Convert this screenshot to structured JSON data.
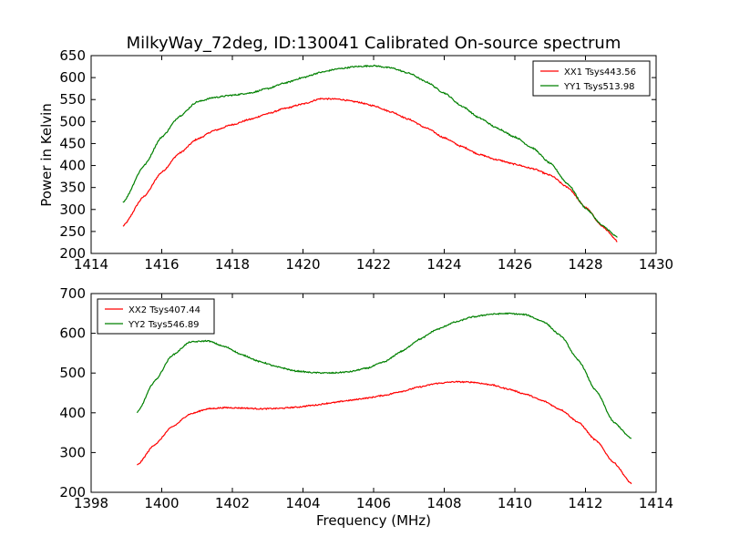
{
  "chart_data": [
    {
      "type": "line",
      "title": "MilkyWay_72deg, ID:130041 Calibrated On-source spectrum",
      "xlabel": "",
      "ylabel": "Power in Kelvin",
      "xlim": [
        1414,
        1430
      ],
      "ylim": [
        200,
        650
      ],
      "xticks": [
        1414,
        1416,
        1418,
        1420,
        1422,
        1424,
        1426,
        1428,
        1430
      ],
      "yticks": [
        200,
        250,
        300,
        350,
        400,
        450,
        500,
        550,
        600,
        650
      ],
      "grid": false,
      "legend": "top-right",
      "series": [
        {
          "name": "XX1 Tsys443.56",
          "color": "#ff0000",
          "x": [
            1414.9,
            1415.5,
            1416.0,
            1416.5,
            1417.0,
            1417.5,
            1418.0,
            1418.5,
            1419.0,
            1419.5,
            1420.0,
            1420.5,
            1421.0,
            1421.5,
            1422.0,
            1422.5,
            1423.0,
            1423.5,
            1424.0,
            1424.5,
            1425.0,
            1425.5,
            1426.0,
            1426.5,
            1427.0,
            1427.5,
            1428.0,
            1428.5,
            1428.9
          ],
          "y": [
            262,
            330,
            385,
            428,
            460,
            480,
            493,
            505,
            518,
            530,
            540,
            552,
            551,
            545,
            536,
            522,
            505,
            485,
            463,
            443,
            425,
            413,
            403,
            393,
            378,
            350,
            305,
            260,
            228
          ]
        },
        {
          "name": "YY1 Tsys513.98",
          "color": "#008000",
          "x": [
            1414.9,
            1415.5,
            1416.0,
            1416.5,
            1417.0,
            1417.5,
            1418.0,
            1418.5,
            1419.0,
            1419.5,
            1420.0,
            1420.5,
            1421.0,
            1421.5,
            1422.0,
            1422.5,
            1423.0,
            1423.5,
            1424.0,
            1424.5,
            1425.0,
            1425.5,
            1426.0,
            1426.5,
            1427.0,
            1427.5,
            1428.0,
            1428.5,
            1428.9
          ],
          "y": [
            316,
            400,
            465,
            512,
            545,
            555,
            560,
            565,
            575,
            588,
            600,
            612,
            620,
            625,
            627,
            622,
            610,
            590,
            565,
            535,
            508,
            485,
            465,
            440,
            405,
            358,
            303,
            262,
            237
          ]
        }
      ]
    },
    {
      "type": "line",
      "title": "",
      "xlabel": "Frequency (MHz)",
      "ylabel": "",
      "xlim": [
        1398,
        1414
      ],
      "ylim": [
        200,
        700
      ],
      "xticks": [
        1398,
        1400,
        1402,
        1404,
        1406,
        1408,
        1410,
        1412,
        1414
      ],
      "yticks": [
        200,
        300,
        400,
        500,
        600,
        700
      ],
      "grid": false,
      "legend": "top-left",
      "series": [
        {
          "name": "XX2 Tsys407.44",
          "color": "#ff0000",
          "x": [
            1399.3,
            1399.8,
            1400.3,
            1400.8,
            1401.3,
            1401.8,
            1402.3,
            1402.8,
            1403.3,
            1403.8,
            1404.3,
            1404.8,
            1405.3,
            1405.8,
            1406.3,
            1406.8,
            1407.3,
            1407.8,
            1408.3,
            1408.8,
            1409.3,
            1409.8,
            1410.3,
            1410.8,
            1411.3,
            1411.8,
            1412.3,
            1412.8,
            1413.3
          ],
          "y": [
            268,
            320,
            365,
            397,
            410,
            413,
            412,
            410,
            411,
            414,
            419,
            425,
            431,
            437,
            444,
            454,
            465,
            474,
            478,
            477,
            471,
            460,
            447,
            430,
            408,
            376,
            330,
            275,
            222
          ]
        },
        {
          "name": "YY2 Tsys546.89",
          "color": "#008000",
          "x": [
            1399.3,
            1399.8,
            1400.3,
            1400.8,
            1401.3,
            1401.8,
            1402.3,
            1402.8,
            1403.3,
            1403.8,
            1404.3,
            1404.8,
            1405.3,
            1405.8,
            1406.3,
            1406.8,
            1407.3,
            1407.8,
            1408.3,
            1408.8,
            1409.3,
            1409.8,
            1410.3,
            1410.8,
            1411.3,
            1411.8,
            1412.3,
            1412.8,
            1413.3
          ],
          "y": [
            400,
            480,
            545,
            578,
            581,
            566,
            545,
            528,
            515,
            505,
            501,
            500,
            503,
            512,
            528,
            555,
            585,
            610,
            628,
            641,
            648,
            650,
            647,
            630,
            594,
            532,
            455,
            376,
            335
          ]
        }
      ]
    }
  ]
}
